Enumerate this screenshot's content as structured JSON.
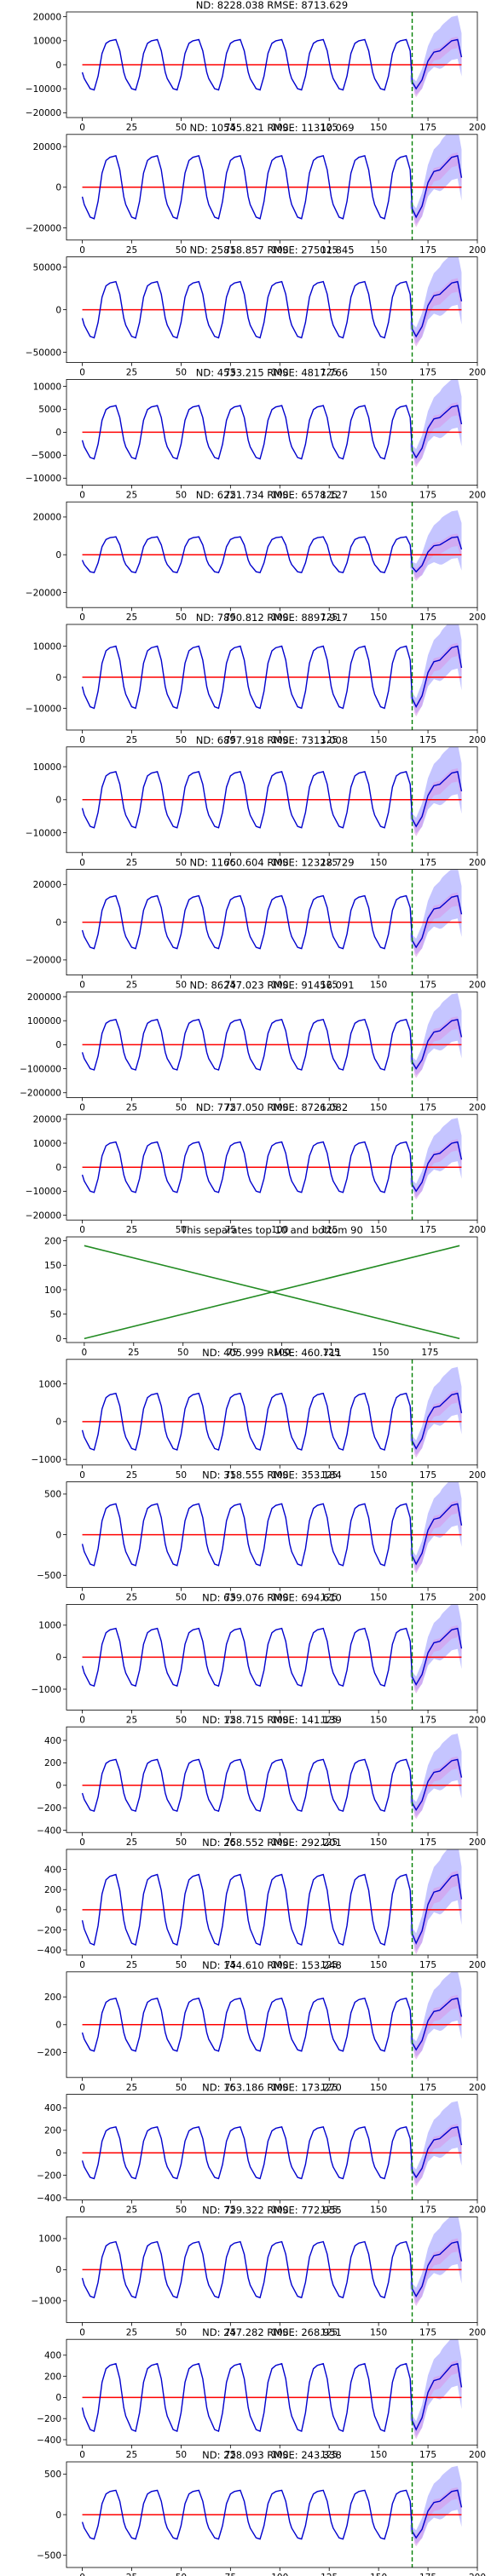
{
  "chart_data": [
    {
      "type": "line",
      "title": "ND:  8228.038 RMSE:  8713.629",
      "ylim": [
        -22000,
        22000
      ],
      "yticks": [
        -20000,
        -10000,
        0,
        10000,
        20000
      ],
      "xlim": [
        -8,
        200
      ],
      "xticks": [
        0,
        25,
        50,
        75,
        100,
        125,
        150,
        175,
        200
      ],
      "amp": 10500,
      "band": 10000,
      "vline_x": 167
    },
    {
      "type": "line",
      "title": "ND:  10545.821 RMSE:  11310.069",
      "ylim": [
        -26000,
        26000
      ],
      "yticks": [
        -20000,
        0,
        20000
      ],
      "xlim": [
        -8,
        200
      ],
      "xticks": [
        0,
        25,
        50,
        75,
        100,
        125,
        150,
        175,
        200
      ],
      "amp": 15500,
      "band": 14000,
      "vline_x": 167
    },
    {
      "type": "line",
      "title": "ND:  25818.857 RMSE:  27501.845",
      "ylim": [
        -62000,
        62000
      ],
      "yticks": [
        -50000,
        0,
        50000
      ],
      "xlim": [
        -8,
        200
      ],
      "xticks": [
        0,
        25,
        50,
        75,
        100,
        125,
        150,
        175,
        200
      ],
      "amp": 33000,
      "band": 34000,
      "vline_x": 167
    },
    {
      "type": "line",
      "title": "ND:  4533.215 RMSE:  4817.766",
      "ylim": [
        -11500,
        11500
      ],
      "yticks": [
        -10000,
        -5000,
        0,
        5000,
        10000
      ],
      "xlim": [
        -8,
        200
      ],
      "xticks": [
        0,
        25,
        50,
        75,
        100,
        125,
        150,
        175,
        200
      ],
      "amp": 5800,
      "band": 6000,
      "vline_x": 167
    },
    {
      "type": "line",
      "title": "ND:  6221.734 RMSE:  6578.127",
      "ylim": [
        -28000,
        28000
      ],
      "yticks": [
        -20000,
        0,
        20000
      ],
      "xlim": [
        -8,
        200
      ],
      "xticks": [
        0,
        25,
        50,
        75,
        100,
        125,
        150,
        175,
        200
      ],
      "amp": 9500,
      "band": 14000,
      "vline_x": 167
    },
    {
      "type": "line",
      "title": "ND:  7890.812 RMSE:  8897.917",
      "ylim": [
        -17000,
        17000
      ],
      "yticks": [
        -10000,
        0,
        10000
      ],
      "xlim": [
        -8,
        200
      ],
      "xticks": [
        0,
        25,
        50,
        75,
        100,
        125,
        150,
        175,
        200
      ],
      "amp": 10000,
      "band": 9000,
      "vline_x": 167
    },
    {
      "type": "line",
      "title": "ND:  6897.918 RMSE:  7313.008",
      "ylim": [
        -16000,
        16000
      ],
      "yticks": [
        -10000,
        0,
        10000
      ],
      "xlim": [
        -8,
        200
      ],
      "xticks": [
        0,
        25,
        50,
        75,
        100,
        125,
        150,
        175,
        200
      ],
      "amp": 8500,
      "band": 8500,
      "vline_x": 167
    },
    {
      "type": "line",
      "title": "ND:  11660.604 RMSE:  12328.729",
      "ylim": [
        -28000,
        28000
      ],
      "yticks": [
        -20000,
        0,
        20000
      ],
      "xlim": [
        -8,
        200
      ],
      "xticks": [
        0,
        25,
        50,
        75,
        100,
        125,
        150,
        175,
        200
      ],
      "amp": 14000,
      "band": 15000,
      "vline_x": 167
    },
    {
      "type": "line",
      "title": "ND:  86247.023 RMSE:  91456.091",
      "ylim": [
        -220000,
        220000
      ],
      "yticks": [
        -200000,
        -100000,
        0,
        100000,
        200000
      ],
      "xlim": [
        -8,
        200
      ],
      "xticks": [
        0,
        25,
        50,
        75,
        100,
        125,
        150,
        175,
        200
      ],
      "amp": 105000,
      "band": 110000,
      "vline_x": 167
    },
    {
      "type": "line",
      "title": "ND:  7727.050 RMSE:  8726.082",
      "ylim": [
        -22000,
        22000
      ],
      "yticks": [
        -20000,
        -10000,
        0,
        10000,
        20000
      ],
      "xlim": [
        -8,
        200
      ],
      "xticks": [
        0,
        25,
        50,
        75,
        100,
        125,
        150,
        175,
        200
      ],
      "amp": 10500,
      "band": 10000,
      "vline_x": 167
    },
    {
      "type": "separator",
      "title": "This separates top 10 and bottom 90",
      "ylim": [
        -8,
        208
      ],
      "yticks": [
        0,
        50,
        100,
        150,
        200
      ],
      "xlim": [
        -9,
        199
      ],
      "xticks": [
        0,
        25,
        50,
        75,
        100,
        125,
        150,
        175
      ],
      "lines": [
        {
          "x": [
            0,
            190
          ],
          "y": [
            0,
            190
          ]
        },
        {
          "x": [
            0,
            190
          ],
          "y": [
            190,
            0
          ]
        }
      ]
    },
    {
      "type": "line",
      "title": "ND:  405.999 RMSE:  460.711",
      "ylim": [
        -1150,
        1650
      ],
      "yticks": [
        -1000,
        0,
        1000
      ],
      "xlim": [
        -8,
        200
      ],
      "xticks": [
        0,
        25,
        50,
        75,
        100,
        125,
        150,
        175,
        200
      ],
      "amp": 750,
      "band": 700,
      "vline_x": 167
    },
    {
      "type": "line",
      "title": "ND:  318.555 RMSE:  353.184",
      "ylim": [
        -650,
        650
      ],
      "yticks": [
        -500,
        0,
        500
      ],
      "xlim": [
        -8,
        200
      ],
      "xticks": [
        0,
        25,
        50,
        75,
        100,
        125,
        150,
        175,
        200
      ],
      "amp": 380,
      "band": 330,
      "vline_x": 167
    },
    {
      "type": "line",
      "title": "ND:  639.076 RMSE:  694.610",
      "ylim": [
        -1650,
        1650
      ],
      "yticks": [
        -1000,
        0,
        1000
      ],
      "xlim": [
        -8,
        200
      ],
      "xticks": [
        0,
        25,
        50,
        75,
        100,
        125,
        150,
        175,
        200
      ],
      "amp": 900,
      "band": 800,
      "vline_x": 167
    },
    {
      "type": "line",
      "title": "ND:  128.715 RMSE:  141.139",
      "ylim": [
        -420,
        520
      ],
      "yticks": [
        -400,
        -200,
        0,
        200,
        400
      ],
      "xlim": [
        -8,
        200
      ],
      "xticks": [
        0,
        25,
        50,
        75,
        100,
        125,
        150,
        175,
        200
      ],
      "amp": 230,
      "band": 230,
      "vline_x": 167
    },
    {
      "type": "line",
      "title": "ND:  268.552 RMSE:  292.201",
      "ylim": [
        -450,
        600
      ],
      "yticks": [
        -400,
        -200,
        0,
        200,
        400
      ],
      "xlim": [
        -8,
        200
      ],
      "xticks": [
        0,
        25,
        50,
        75,
        100,
        125,
        150,
        175,
        200
      ],
      "amp": 350,
      "band": 320,
      "vline_x": 167
    },
    {
      "type": "line",
      "title": "ND:  144.610 RMSE:  153.248",
      "ylim": [
        -380,
        380
      ],
      "yticks": [
        -200,
        0,
        200
      ],
      "xlim": [
        -8,
        200
      ],
      "xticks": [
        0,
        25,
        50,
        75,
        100,
        125,
        150,
        175,
        200
      ],
      "amp": 190,
      "band": 200,
      "vline_x": 167
    },
    {
      "type": "line",
      "title": "ND:  163.186 RMSE:  173.270",
      "ylim": [
        -420,
        520
      ],
      "yticks": [
        -400,
        -200,
        0,
        200,
        400
      ],
      "xlim": [
        -8,
        200
      ],
      "xticks": [
        0,
        25,
        50,
        75,
        100,
        125,
        150,
        175,
        200
      ],
      "amp": 230,
      "band": 230,
      "vline_x": 167
    },
    {
      "type": "line",
      "title": "ND:  729.322 RMSE:  772.955",
      "ylim": [
        -1700,
        1700
      ],
      "yticks": [
        -1000,
        0,
        1000
      ],
      "xlim": [
        -8,
        200
      ],
      "xticks": [
        0,
        25,
        50,
        75,
        100,
        125,
        150,
        175,
        200
      ],
      "amp": 900,
      "band": 900,
      "vline_x": 167
    },
    {
      "type": "line",
      "title": "ND:  247.282 RMSE:  268.951",
      "ylim": [
        -450,
        550
      ],
      "yticks": [
        -400,
        -200,
        0,
        200,
        400
      ],
      "xlim": [
        -8,
        200
      ],
      "xticks": [
        0,
        25,
        50,
        75,
        100,
        125,
        150,
        175,
        200
      ],
      "amp": 320,
      "band": 260,
      "vline_x": 167
    },
    {
      "type": "line",
      "title": "ND:  228.093 RMSE:  243.338",
      "ylim": [
        -650,
        650
      ],
      "yticks": [
        -500,
        0,
        500
      ],
      "xlim": [
        -8,
        200
      ],
      "xticks": [
        0,
        25,
        50,
        75,
        100,
        125,
        150,
        175,
        200
      ],
      "amp": 300,
      "band": 300,
      "vline_x": 167
    }
  ],
  "colors": {
    "actual": "#0000cd",
    "baseline": "#ff0000",
    "band": "#8c8cff",
    "band2": "#d896e8",
    "vline": "#008000",
    "separator": "#228b22"
  }
}
